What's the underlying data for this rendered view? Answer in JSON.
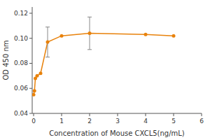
{
  "chart_data": {
    "type": "line",
    "x": [
      0.0,
      0.031,
      0.063,
      0.125,
      0.25,
      0.5,
      1.0,
      2.0,
      4.0,
      5.0
    ],
    "values": [
      0.055,
      0.058,
      0.068,
      0.07,
      0.072,
      0.097,
      0.102,
      0.104,
      0.103,
      0.102
    ],
    "yerr": [
      0.0,
      0.0,
      0.0,
      0.0,
      0.0,
      0.012,
      0.0,
      0.013,
      0.0,
      0.0
    ],
    "color": "#E8820C",
    "marker": "circle",
    "xlabel": "Concentration of Mouse CXCL5(ng/mL)",
    "ylabel": "OD 450 nm",
    "xlim": [
      -0.05,
      6
    ],
    "ylim": [
      0.04,
      0.125
    ],
    "xticks": [
      0,
      1,
      2,
      3,
      4,
      5,
      6
    ],
    "yticks": [
      0.04,
      0.06,
      0.08,
      {
        "value": 0.1,
        "label": "0.10"
      },
      0.12
    ],
    "grid": false
  }
}
